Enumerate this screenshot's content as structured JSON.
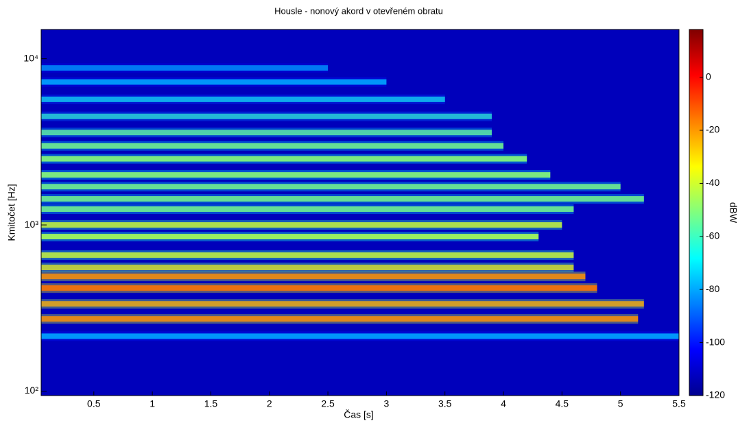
{
  "chart_data": {
    "type": "spectrogram",
    "title": "Housle - nonový akord v otevřeném obratu",
    "xlabel": "Čas [s]",
    "ylabel": "Kmitočet [Hz]",
    "colorbar_label": "dBW",
    "colormap": "jet",
    "xlim": [
      0.05,
      5.5
    ],
    "xticks": [
      0.5,
      1,
      1.5,
      2,
      2.5,
      3,
      3.5,
      4,
      4.5,
      5,
      5.5
    ],
    "ylim": [
      94,
      15000
    ],
    "yscale": "log",
    "yticks": [
      {
        "value": 100,
        "label": "10²"
      },
      {
        "value": 1000,
        "label": "10³"
      },
      {
        "value": 10000,
        "label": "10⁴"
      }
    ],
    "clim": [
      -120,
      18
    ],
    "cticks": [
      -120,
      -100,
      -80,
      -60,
      -40,
      -20,
      0
    ],
    "background_level": -112,
    "partials": [
      {
        "freq": 214,
        "end": 5.5,
        "level": -70
      },
      {
        "freq": 272,
        "end": 5.15,
        "level": -10
      },
      {
        "freq": 335,
        "end": 5.2,
        "level": -15
      },
      {
        "freq": 417,
        "end": 4.8,
        "level": -5
      },
      {
        "freq": 490,
        "end": 4.7,
        "level": -10
      },
      {
        "freq": 555,
        "end": 4.6,
        "level": -25
      },
      {
        "freq": 658,
        "end": 4.6,
        "level": -30
      },
      {
        "freq": 851,
        "end": 4.3,
        "level": -35
      },
      {
        "freq": 1000,
        "end": 4.5,
        "level": -30
      },
      {
        "freq": 1245,
        "end": 4.6,
        "level": -45
      },
      {
        "freq": 1435,
        "end": 5.2,
        "level": -45
      },
      {
        "freq": 1700,
        "end": 5.0,
        "level": -45
      },
      {
        "freq": 2000,
        "end": 4.4,
        "level": -40
      },
      {
        "freq": 2500,
        "end": 4.2,
        "level": -40
      },
      {
        "freq": 2990,
        "end": 4.0,
        "level": -45
      },
      {
        "freq": 3600,
        "end": 3.9,
        "level": -50
      },
      {
        "freq": 4500,
        "end": 3.9,
        "level": -60
      },
      {
        "freq": 5700,
        "end": 3.5,
        "level": -65
      },
      {
        "freq": 7250,
        "end": 3.0,
        "level": -70
      },
      {
        "freq": 8800,
        "end": 2.5,
        "level": -75
      }
    ]
  }
}
